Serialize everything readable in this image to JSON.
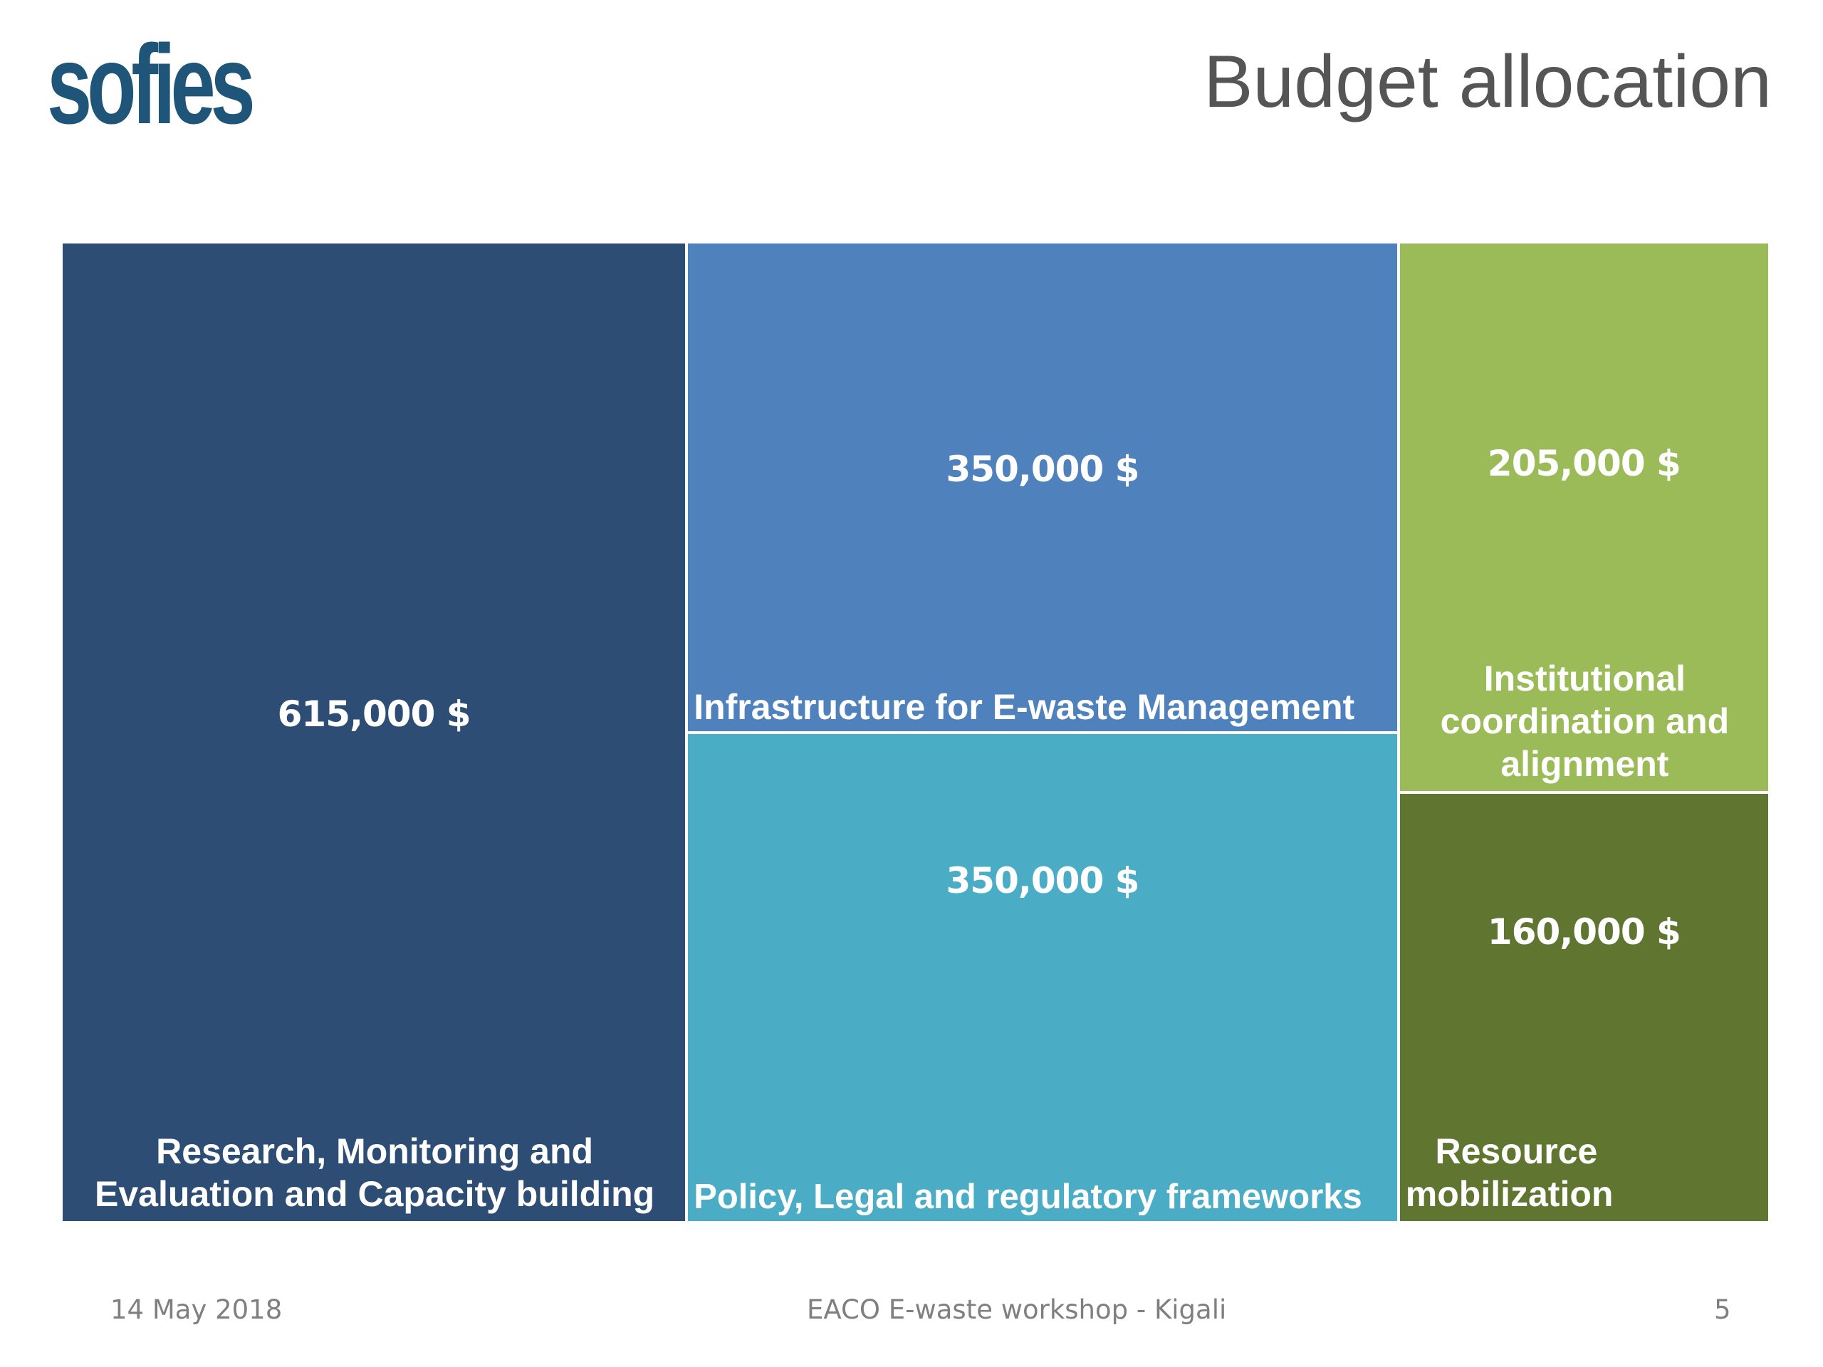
{
  "header": {
    "logo_text": "sofies",
    "title": "Budget allocation"
  },
  "colors": {
    "logo": "#1e5578",
    "title": "#555555",
    "footer": "#7f7f7f"
  },
  "chart_data": {
    "type": "treemap",
    "title": "",
    "unit": "$",
    "items": [
      {
        "label": "Research, Monitoring and Evaluation and Capacity building",
        "value": 615000,
        "value_label": "615,000 $",
        "color": "#2e4d74"
      },
      {
        "label": "Infrastructure for E-waste Management",
        "value": 350000,
        "value_label": "350,000 $",
        "color": "#4f81bd"
      },
      {
        "label": "Policy, Legal and regulatory frameworks",
        "value": 350000,
        "value_label": "350,000 $",
        "color": "#4bacc6"
      },
      {
        "label": "Institutional coordination and alignment",
        "value": 205000,
        "value_label": "205,000 $",
        "color": "#9bbb59"
      },
      {
        "label": "Resource mobilization",
        "value": 160000,
        "value_label": "160,000 $",
        "color": "#5f7530"
      }
    ]
  },
  "footer": {
    "date": "14 May 2018",
    "event": "EACO E-waste workshop - Kigali",
    "page": "5"
  }
}
